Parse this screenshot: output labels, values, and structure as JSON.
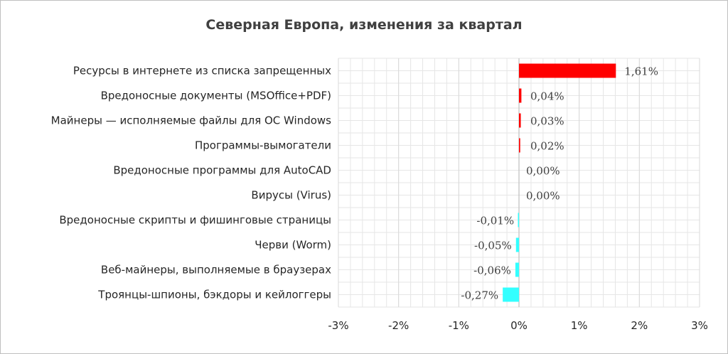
{
  "chart_data": {
    "type": "bar",
    "orientation": "horizontal",
    "title": "Северная Европа, изменения за квартал",
    "categories": [
      "Ресурсы в интернете из списка запрещенных",
      "Вредоносные документы (MSOffice+PDF)",
      "Майнеры — исполняемые файлы для ОС Windows",
      "Программы-вымогатели",
      "Вредоносные программы для AutoCAD",
      "Вирусы (Virus)",
      "Вредоносные скрипты и фишинговые страницы",
      "Черви (Worm)",
      "Веб-майнеры, выполняемые в браузерах",
      "Троянцы-шпионы, бэкдоры и кейлоггеры"
    ],
    "values": [
      1.61,
      0.04,
      0.03,
      0.02,
      0.0,
      0.0,
      -0.01,
      -0.05,
      -0.06,
      -0.27
    ],
    "value_labels": [
      "1,61%",
      "0,04%",
      "0,03%",
      "0,02%",
      "0,00%",
      "0,00%",
      "-0,01%",
      "-0,05%",
      "-0,06%",
      "-0,27%"
    ],
    "xlim": [
      -3,
      3
    ],
    "x_ticks": [
      -3,
      -2,
      -1,
      0,
      1,
      2,
      3
    ],
    "x_tick_labels": [
      "-3%",
      "-2%",
      "-1%",
      "0%",
      "1%",
      "2%",
      "3%"
    ],
    "grid": true,
    "legend": "none",
    "colors": {
      "positive": "#ff0000",
      "negative": "#33ffff",
      "grid": "#e6e6e6",
      "zero_line": "#bfbfbf"
    }
  }
}
